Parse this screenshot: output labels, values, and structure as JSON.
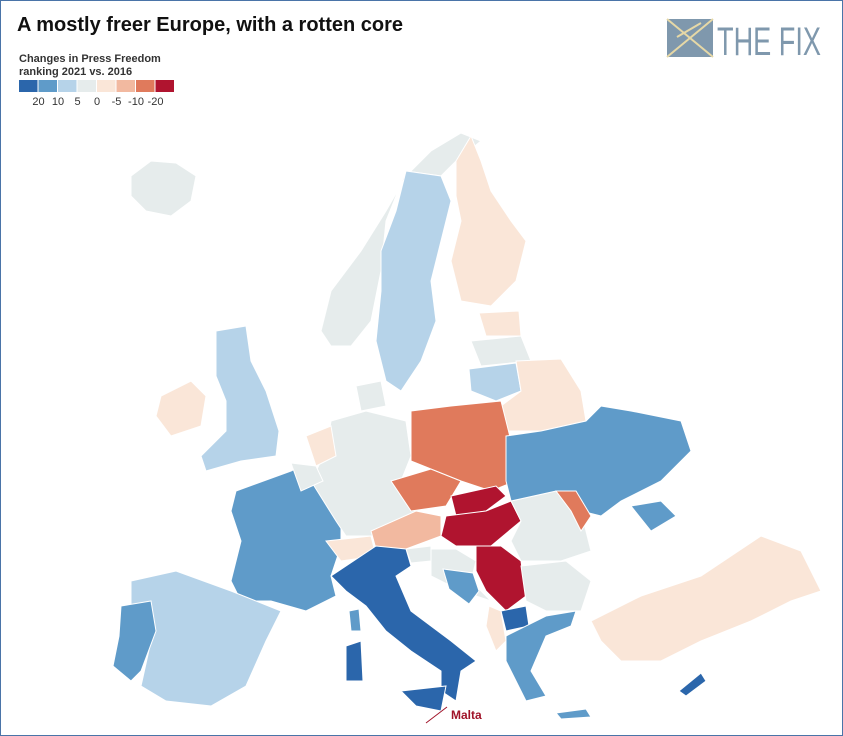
{
  "header": {
    "title": "A mostly freer Europe, with a rotten core",
    "logo": "THE FIX"
  },
  "legend": {
    "title_line1": "Changes in Press Freedom",
    "title_line2": "ranking 2021 vs. 2016",
    "colors": [
      "#2b66ab",
      "#5f9bc9",
      "#b6d3e9",
      "#e6ecec",
      "#fae6d8",
      "#f2b9a0",
      "#e07a5c",
      "#b0142f"
    ],
    "labels": [
      20,
      10,
      5,
      0,
      -5,
      -10,
      -20
    ]
  },
  "annotation": {
    "label": "Malta",
    "color": "#a01228"
  }
}
